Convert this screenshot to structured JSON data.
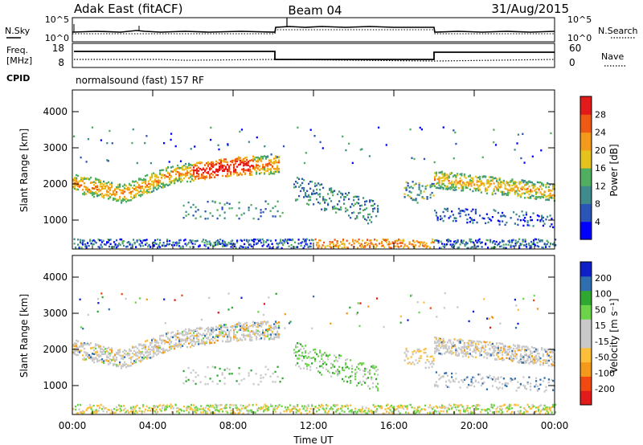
{
  "header": {
    "station": "Adak East (fitACF)",
    "beam": "Beam 04",
    "date": "31/Aug/2015"
  },
  "noise_panel": {
    "left_label": "N.Sky",
    "right_label": "N.Search",
    "left_ticks": [
      "10^5",
      "10^0"
    ],
    "right_ticks": [
      "10^5",
      "10^0"
    ]
  },
  "freq_panel": {
    "left_label_1": "Freq.",
    "left_label_2": "[MHz]",
    "left_ticks": [
      "18",
      "8"
    ],
    "right_label": "Nave",
    "right_ticks": [
      "60",
      "0"
    ],
    "cpid_label": "CPID",
    "cpid_text": "normalsound (fast) 157 RF"
  },
  "colors": {
    "power_scale": [
      "#0000ff",
      "#2a54b6",
      "#3f8a8a",
      "#4fae5f",
      "#e6c21e",
      "#f39a1a",
      "#ee5a14",
      "#e31a1a"
    ],
    "velocity_scale": [
      "#e31a1a",
      "#f04a10",
      "#f39a1a",
      "#fdbf3a",
      "#c9c9c9",
      "#c9c9c9",
      "#6cd44a",
      "#2fa832",
      "#2f6fb0",
      "#1020c8"
    ]
  },
  "chart_data": [
    {
      "type": "heatmap",
      "name": "power",
      "ylabel": "Slant Range [km]",
      "ylim": [
        200,
        4600
      ],
      "y_ticks": [
        "1000",
        "2000",
        "3000",
        "4000"
      ],
      "x_ticks": [
        "00:00",
        "04:00",
        "08:00",
        "12:00",
        "16:00",
        "20:00",
        "00:00"
      ],
      "colorbar_label": "Power [dB]",
      "colorbar_ticks": [
        "4",
        "8",
        "12",
        "16",
        "20",
        "24",
        "28"
      ]
    },
    {
      "type": "heatmap",
      "name": "velocity",
      "ylabel": "Slant Range [km]",
      "ylim": [
        200,
        4600
      ],
      "y_ticks": [
        "1000",
        "2000",
        "3000",
        "4000"
      ],
      "x_ticks": [
        "00:00",
        "04:00",
        "08:00",
        "12:00",
        "16:00",
        "20:00",
        "00:00"
      ],
      "xlabel": "Time UT",
      "colorbar_label": "Velocity [m s⁻¹]",
      "colorbar_ticks": [
        "200",
        "100",
        "50",
        "15",
        "-15",
        "-50",
        "-100",
        "-200"
      ]
    }
  ]
}
